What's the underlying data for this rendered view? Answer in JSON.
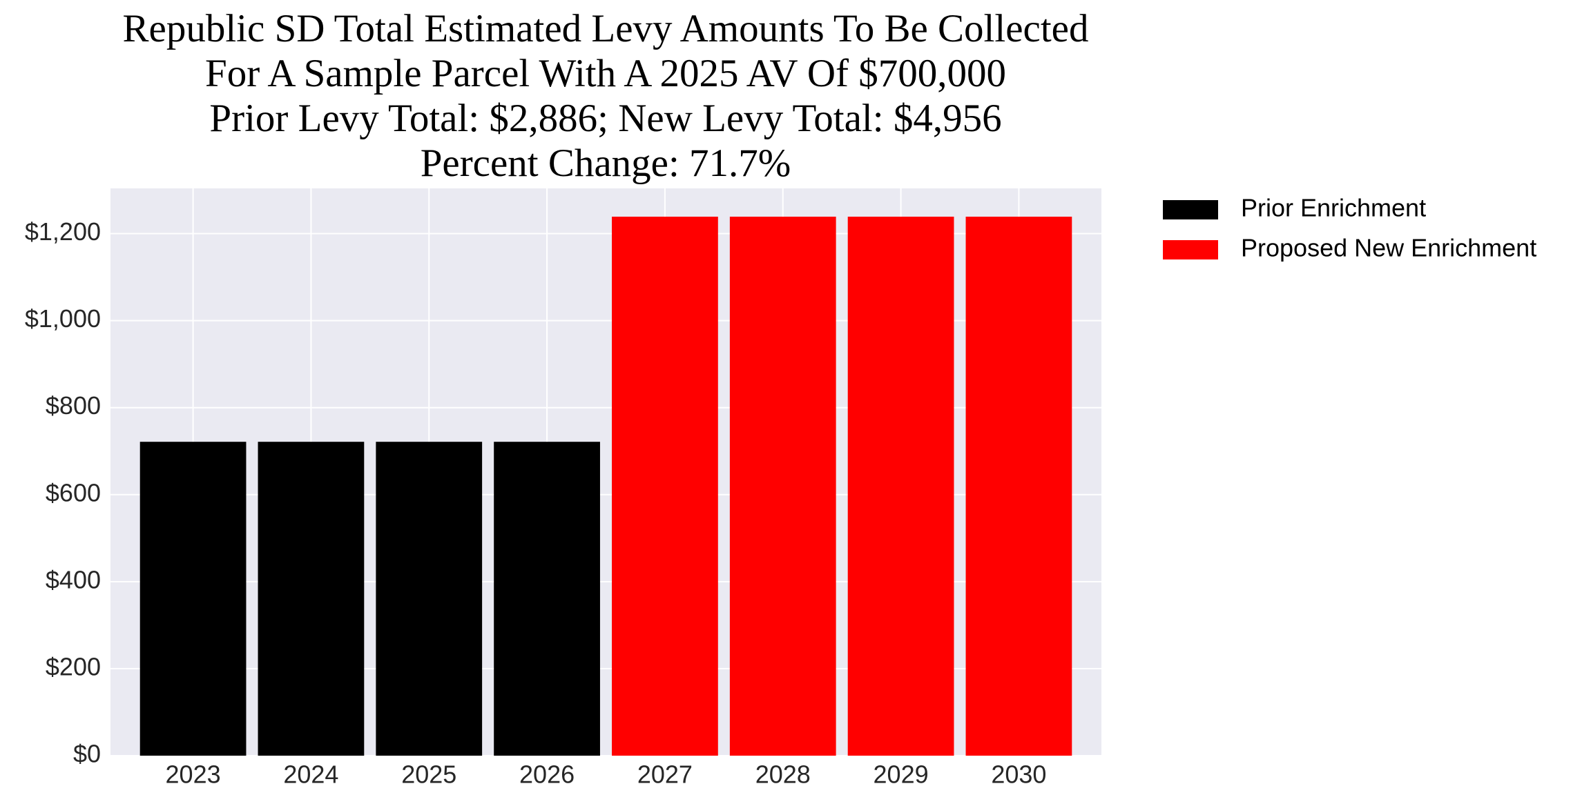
{
  "chart_data": {
    "type": "bar",
    "title": [
      "Republic SD Total Estimated Levy Amounts To Be Collected",
      "For A Sample Parcel With A 2025 AV Of $700,000",
      "Prior Levy Total:  $2,886; New Levy Total: $4,956",
      "Percent Change: 71.7%"
    ],
    "categories": [
      "2023",
      "2024",
      "2025",
      "2026",
      "2027",
      "2028",
      "2029",
      "2030"
    ],
    "series": [
      {
        "name": "Prior Enrichment",
        "color": "#000000",
        "values": [
          721.5,
          721.5,
          721.5,
          721.5,
          null,
          null,
          null,
          null
        ]
      },
      {
        "name": "Proposed New Enrichment",
        "color": "#ff0000",
        "values": [
          null,
          null,
          null,
          null,
          1239,
          1239,
          1239,
          1239
        ]
      }
    ],
    "ylim": [
      0,
      1304
    ],
    "yticks": [
      {
        "value": 0,
        "label": "$0"
      },
      {
        "value": 200,
        "label": "$200"
      },
      {
        "value": 400,
        "label": "$400"
      },
      {
        "value": 600,
        "label": "$600"
      },
      {
        "value": 800,
        "label": "$800"
      },
      {
        "value": 1000,
        "label": "$1,000"
      },
      {
        "value": 1200,
        "label": "$1,200"
      }
    ],
    "grid": true,
    "legend": "outside-right"
  }
}
